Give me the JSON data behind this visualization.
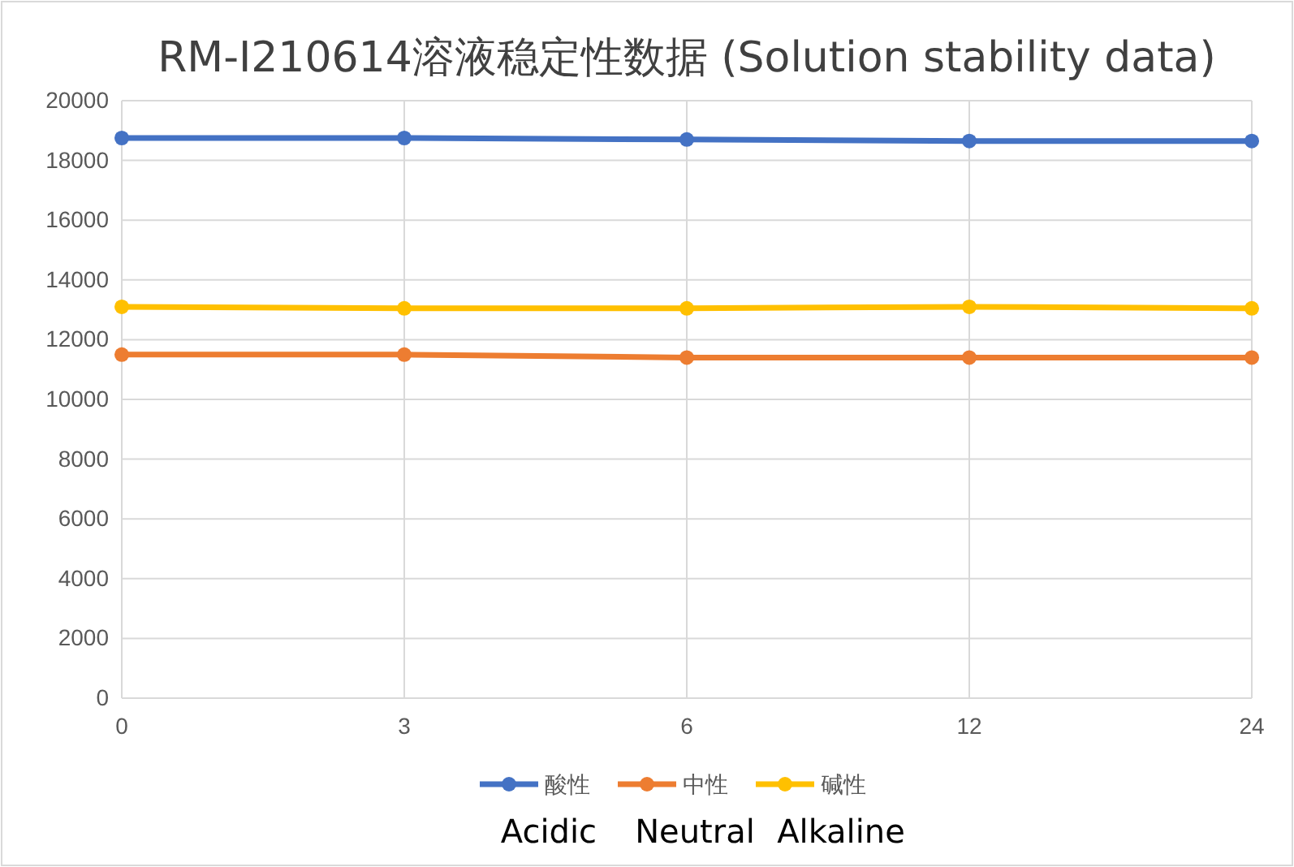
{
  "chart_data": {
    "type": "line",
    "title": "RM-I210614溶液稳定性数据 (Solution stability data)",
    "categories": [
      "0",
      "3",
      "6",
      "12",
      "24"
    ],
    "series": [
      {
        "name": "酸性",
        "color": "#4472c4",
        "values": [
          18750,
          18750,
          18700,
          18650,
          18650
        ]
      },
      {
        "name": "中性",
        "color": "#ed7d31",
        "values": [
          11500,
          11500,
          11400,
          11400,
          11400
        ]
      },
      {
        "name": "碱性",
        "color": "#ffc000",
        "values": [
          13100,
          13050,
          13050,
          13100,
          13050
        ]
      }
    ],
    "ylim": [
      0,
      20000
    ],
    "yticks": [
      0,
      2000,
      4000,
      6000,
      8000,
      10000,
      12000,
      14000,
      16000,
      18000,
      20000
    ],
    "grid": true,
    "legend": "bottom",
    "marker": "circle",
    "line_style": "solid",
    "annotations": [
      "Acidic",
      "Neutral",
      "Alkaline"
    ]
  }
}
